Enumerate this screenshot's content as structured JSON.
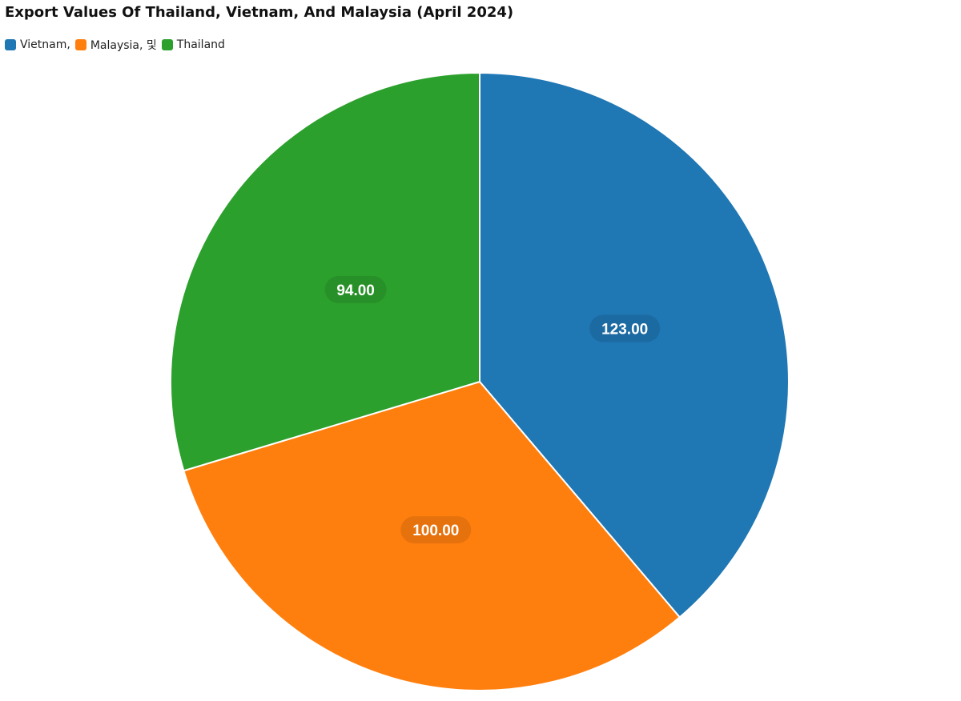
{
  "chart_data": {
    "type": "pie",
    "title": "Export Values Of Thailand, Vietnam, And Malaysia (April 2024)",
    "legend_position": "top-left",
    "legend_text": [
      "Vietnam,",
      "Malaysia, 및",
      "Thailand"
    ],
    "categories": [
      "Vietnam",
      "Malaysia",
      "Thailand"
    ],
    "values": [
      123,
      100,
      94
    ],
    "value_labels": [
      "123.00",
      "100.00",
      "94.00"
    ],
    "colors": [
      "#1f77b4",
      "#ff7f0e",
      "#2ca02c"
    ],
    "label_bg_colors": [
      "#1c6aa2",
      "#e6720d",
      "#289028"
    ]
  }
}
